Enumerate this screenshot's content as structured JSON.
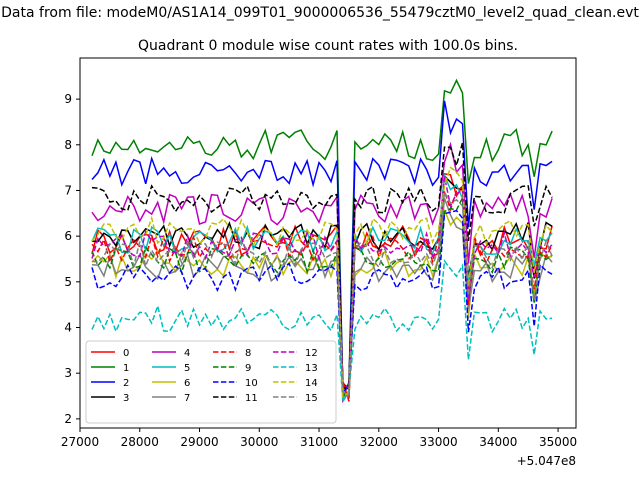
{
  "header": {
    "file_text": "Data from file: modeM0/AS1A14_099T01_9000006536_55479cztM0_level2_quad_clean.evt"
  },
  "chart_data": {
    "type": "line",
    "title": "Quadrant 0 module wise count rates with 100.0s bins.",
    "xlabel": "",
    "ylabel": "",
    "x_offset_label": "+5.047e8",
    "xlim": [
      27000,
      35300
    ],
    "ylim": [
      1.8,
      9.9
    ],
    "x_ticks": [
      27000,
      28000,
      29000,
      30000,
      31000,
      32000,
      33000,
      34000,
      35000
    ],
    "x_tick_labels": [
      "27000",
      "28000",
      "29000",
      "30000",
      "31000",
      "32000",
      "33000",
      "34000",
      "35000"
    ],
    "y_ticks": [
      2,
      3,
      4,
      5,
      6,
      7,
      8,
      9
    ],
    "y_tick_labels": [
      "2",
      "3",
      "4",
      "5",
      "6",
      "7",
      "8",
      "9"
    ],
    "x_start": 27200,
    "x_step": 100,
    "x_end": 34950,
    "legend": {
      "location": "lower-left",
      "columns": 4
    },
    "series": [
      {
        "name": "0",
        "color": "#ff0000",
        "dash": "solid",
        "base": 5.9,
        "amp": 0.35
      },
      {
        "name": "1",
        "color": "#008000",
        "dash": "solid",
        "base": 8.0,
        "amp": 0.35
      },
      {
        "name": "2",
        "color": "#0000ff",
        "dash": "solid",
        "base": 7.4,
        "amp": 0.3
      },
      {
        "name": "3",
        "color": "#000000",
        "dash": "solid",
        "base": 6.0,
        "amp": 0.3
      },
      {
        "name": "4",
        "color": "#bf00bf",
        "dash": "solid",
        "base": 6.6,
        "amp": 0.35
      },
      {
        "name": "5",
        "color": "#00bfbf",
        "dash": "solid",
        "base": 5.9,
        "amp": 0.3
      },
      {
        "name": "6",
        "color": "#bfbf00",
        "dash": "solid",
        "base": 5.4,
        "amp": 0.3
      },
      {
        "name": "7",
        "color": "#808080",
        "dash": "solid",
        "base": 5.3,
        "amp": 0.3
      },
      {
        "name": "8",
        "color": "#ff0000",
        "dash": "dashed",
        "base": 5.7,
        "amp": 0.3
      },
      {
        "name": "9",
        "color": "#008000",
        "dash": "dashed",
        "base": 5.5,
        "amp": 0.3
      },
      {
        "name": "10",
        "color": "#0000ff",
        "dash": "dashed",
        "base": 5.1,
        "amp": 0.3
      },
      {
        "name": "11",
        "color": "#000000",
        "dash": "dashed",
        "base": 6.8,
        "amp": 0.3
      },
      {
        "name": "12",
        "color": "#bf00bf",
        "dash": "dashed",
        "base": 5.8,
        "amp": 0.3
      },
      {
        "name": "13",
        "color": "#00bfbf",
        "dash": "dashed",
        "base": 4.2,
        "amp": 0.3
      },
      {
        "name": "14",
        "color": "#bfbf00",
        "dash": "dashed",
        "base": 6.1,
        "amp": 0.3
      },
      {
        "name": "15",
        "color": "#808080",
        "dash": "dashed",
        "base": 5.6,
        "amp": 0.3
      }
    ]
  }
}
